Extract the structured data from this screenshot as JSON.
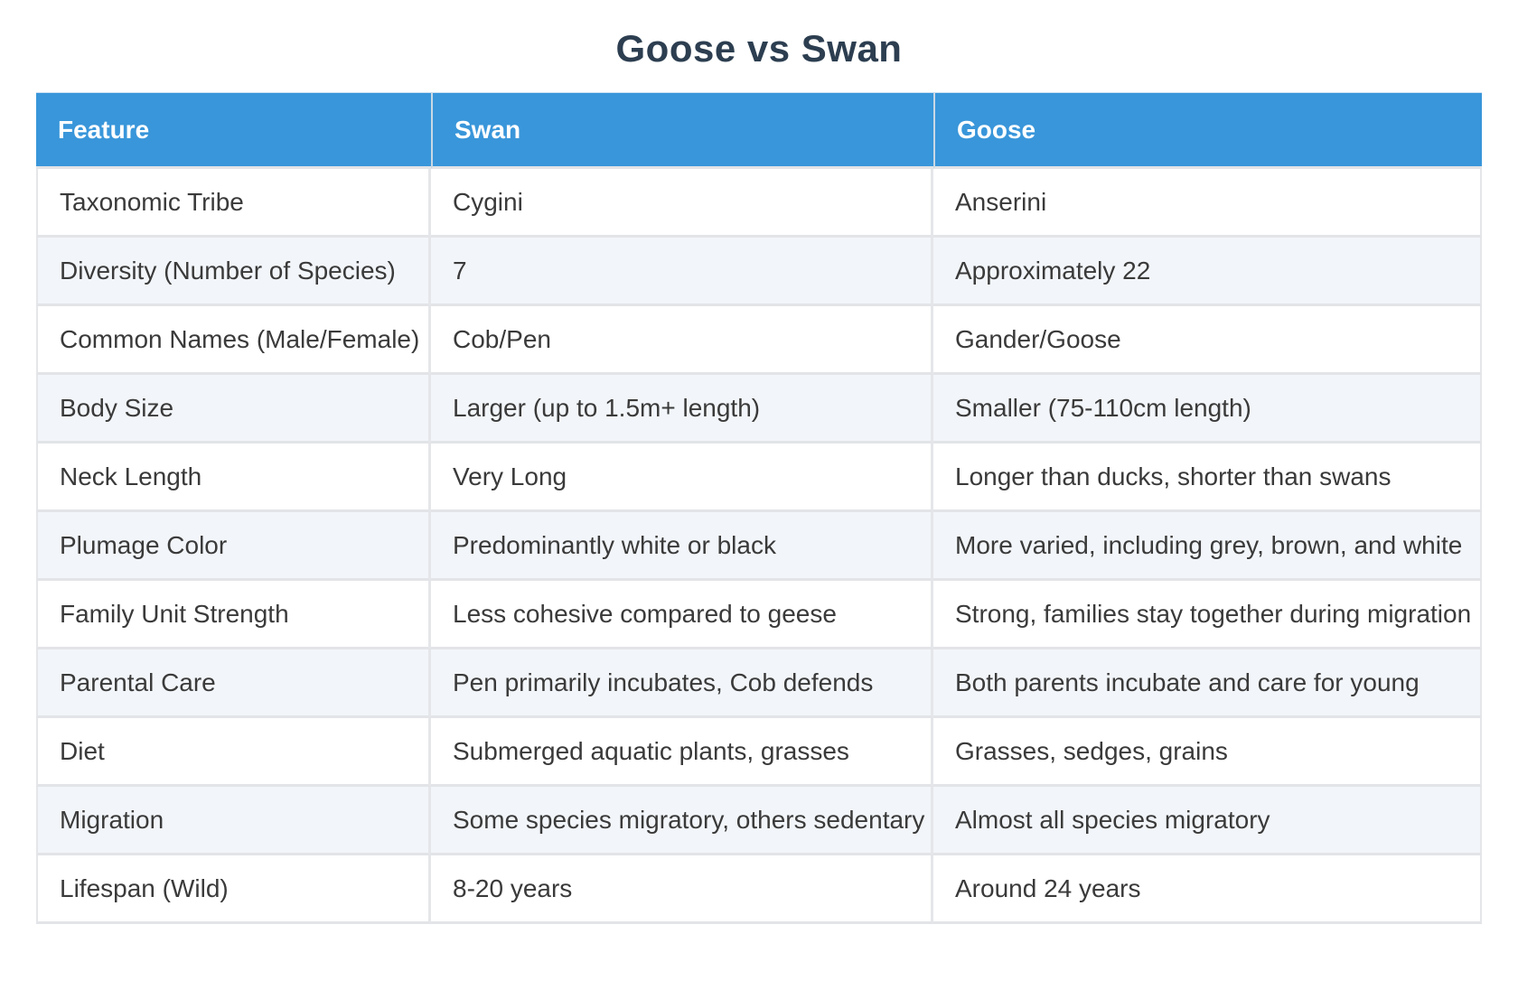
{
  "page": {
    "title": "Goose vs Swan"
  },
  "colors": {
    "title_text": "#2c3e50",
    "header_bg": "#3996da",
    "header_text": "#ffffff",
    "row_bg": "#ffffff",
    "row_alt_bg": "#f2f5f9",
    "border": "#e2e4e7",
    "cell_text": "#3a3a3a"
  },
  "table": {
    "columns": [
      "Feature",
      "Swan",
      "Goose"
    ],
    "rows": [
      {
        "feature": "Taxonomic Tribe",
        "swan": "Cygini",
        "goose": "Anserini"
      },
      {
        "feature": "Diversity (Number of Species)",
        "swan": "7",
        "goose": "Approximately 22"
      },
      {
        "feature": "Common Names (Male/Female)",
        "swan": "Cob/Pen",
        "goose": "Gander/Goose"
      },
      {
        "feature": "Body Size",
        "swan": "Larger (up to 1.5m+ length)",
        "goose": "Smaller (75-110cm length)"
      },
      {
        "feature": "Neck Length",
        "swan": "Very Long",
        "goose": "Longer than ducks, shorter than swans"
      },
      {
        "feature": "Plumage Color",
        "swan": "Predominantly white or black",
        "goose": "More varied, including grey, brown, and white"
      },
      {
        "feature": "Family Unit Strength",
        "swan": "Less cohesive compared to geese",
        "goose": "Strong, families stay together during migration"
      },
      {
        "feature": "Parental Care",
        "swan": "Pen primarily incubates, Cob defends",
        "goose": "Both parents incubate and care for young"
      },
      {
        "feature": "Diet",
        "swan": "Submerged aquatic plants, grasses",
        "goose": "Grasses, sedges, grains"
      },
      {
        "feature": "Migration",
        "swan": "Some species migratory, others sedentary",
        "goose": "Almost all species migratory"
      },
      {
        "feature": "Lifespan (Wild)",
        "swan": "8-20 years",
        "goose": "Around 24 years"
      }
    ]
  }
}
